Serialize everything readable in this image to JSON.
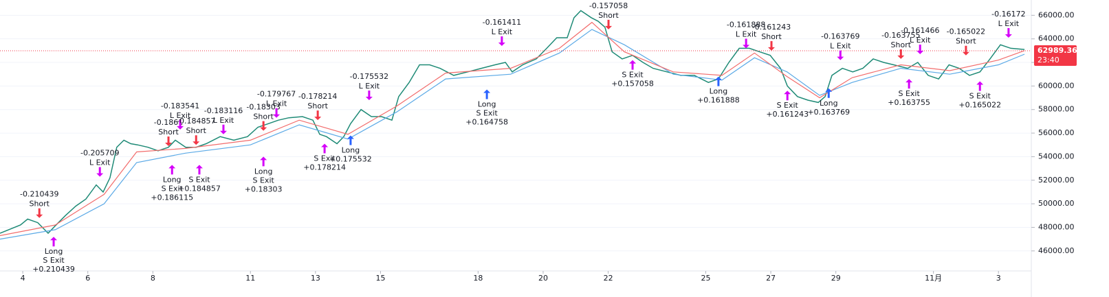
{
  "chart_data": {
    "type": "line",
    "xlim": [
      3.3,
      35.01
    ],
    "ylim": [
      44300,
      67300
    ],
    "xticks": [
      4,
      6,
      8,
      11,
      13,
      15,
      18,
      20,
      22,
      25,
      27,
      29,
      {
        "value": 32,
        "label": "11月"
      },
      {
        "value": 34,
        "label": "3"
      }
    ],
    "yticks": [
      {
        "value": 46000,
        "label": "46000.00"
      },
      {
        "value": 48000,
        "label": "48000.00"
      },
      {
        "value": 50000,
        "label": "50000.00"
      },
      {
        "value": 52000,
        "label": "52000.00"
      },
      {
        "value": 54000,
        "label": "54000.00"
      },
      {
        "value": 56000,
        "label": "56000.00"
      },
      {
        "value": 58000,
        "label": "58000.00"
      },
      {
        "value": 60000,
        "label": "60000.00"
      },
      {
        "value": 62000,
        "label": "62000.00"
      },
      {
        "value": 64000,
        "label": "64000.00"
      },
      {
        "value": 66000,
        "label": "66000.00"
      }
    ],
    "series": [
      {
        "color": "#1e8a76",
        "x": [
          3.3,
          3.93,
          4.15,
          4.46,
          4.78,
          4.99,
          5.31,
          5.63,
          5.94,
          6.26,
          6.47,
          6.68,
          6.89,
          7.11,
          7.32,
          7.53,
          7.85,
          8.16,
          8.48,
          8.69,
          9.01,
          9.33,
          9.64,
          10.07,
          10.49,
          10.91,
          11.23,
          11.55,
          11.86,
          12.18,
          12.6,
          12.92,
          13.13,
          13.34,
          13.66,
          13.87,
          14.08,
          14.4,
          14.72,
          15.03,
          15.35,
          15.56,
          15.88,
          16.2,
          16.51,
          16.83,
          17.25,
          17.68,
          18.1,
          18.52,
          18.84,
          19.05,
          19.37,
          19.79,
          20.11,
          20.42,
          20.74,
          20.95,
          21.16,
          21.48,
          21.69,
          21.9,
          22.12,
          22.43,
          22.75,
          23.07,
          23.38,
          23.81,
          24.23,
          24.65,
          25.08,
          25.39,
          25.71,
          26.03,
          26.34,
          26.66,
          26.98,
          27.3,
          27.51,
          27.82,
          28.14,
          28.46,
          28.67,
          28.88,
          29.2,
          29.52,
          29.83,
          30.15,
          30.47,
          30.78,
          31.21,
          31.52,
          31.84,
          32.16,
          32.48,
          32.79,
          33.11,
          33.43,
          33.74,
          34.06,
          34.38,
          34.8
        ],
        "values": [
          47500,
          48200,
          48700,
          48400,
          47500,
          48100,
          49000,
          49800,
          50400,
          51600,
          51000,
          52200,
          54800,
          55400,
          55100,
          55000,
          54800,
          54500,
          54800,
          55400,
          54800,
          54800,
          55100,
          55700,
          55400,
          55700,
          56500,
          56800,
          57100,
          57300,
          57400,
          57100,
          55900,
          55700,
          55100,
          55700,
          56800,
          58000,
          57400,
          57400,
          57100,
          59100,
          60300,
          61800,
          61800,
          61500,
          60900,
          61200,
          61500,
          61800,
          62000,
          61200,
          61800,
          62300,
          63200,
          64100,
          64100,
          65800,
          66400,
          65800,
          65500,
          65000,
          62900,
          62300,
          62600,
          62000,
          61500,
          61200,
          60900,
          60900,
          60300,
          60600,
          62000,
          63200,
          63200,
          62900,
          62600,
          61500,
          60000,
          59100,
          58800,
          58600,
          59100,
          60900,
          61500,
          61200,
          61500,
          62300,
          62000,
          61800,
          61500,
          62000,
          60900,
          60600,
          61800,
          61500,
          60900,
          61200,
          62300,
          63500,
          63200,
          63100
        ]
      },
      {
        "color": "#5aa9e6",
        "x": [
          3.3,
          5,
          6.5,
          7.5,
          9,
          11,
          12.5,
          14,
          15.5,
          17,
          19,
          20.5,
          21.5,
          22.5,
          24,
          25.5,
          26.5,
          27.5,
          28.5,
          29.5,
          31,
          32.5,
          34,
          34.8
        ],
        "values": [
          47000,
          47800,
          50000,
          53500,
          54300,
          55000,
          56700,
          55500,
          57800,
          60600,
          61000,
          62800,
          64800,
          63500,
          61000,
          60500,
          62400,
          61200,
          59200,
          60300,
          61500,
          61000,
          61800,
          62700
        ]
      },
      {
        "color": "#f26b6b",
        "x": [
          3.3,
          5,
          6.5,
          7.5,
          9,
          11,
          12.5,
          14,
          15.5,
          17,
          19,
          20.5,
          21.5,
          22.5,
          24,
          25.5,
          26.5,
          27.5,
          28.5,
          29.5,
          31,
          32.5,
          34,
          34.8
        ],
        "values": [
          47300,
          48200,
          50800,
          54400,
          54700,
          55400,
          57100,
          55900,
          58300,
          61100,
          61500,
          63200,
          65400,
          62900,
          61200,
          60900,
          62800,
          60800,
          59000,
          60700,
          61800,
          61300,
          62200,
          63000
        ]
      }
    ],
    "signals": [
      {
        "x": 4.51,
        "price": 48800,
        "color": "#f23645",
        "side": "above",
        "lines": [
          "-0.210439",
          "Short"
        ]
      },
      {
        "x": 4.95,
        "price": 47200,
        "color": "#d500f9",
        "side": "below",
        "lines": [
          "Long",
          "S Exit",
          "+0.210439"
        ]
      },
      {
        "x": 6.37,
        "price": 52300,
        "color": "#d500f9",
        "side": "above",
        "lines": [
          "-0.205709",
          "L Exit"
        ]
      },
      {
        "x": 8.48,
        "price": 54900,
        "color": "#f23645",
        "side": "above",
        "lines": [
          "-0.1861",
          "Short"
        ]
      },
      {
        "x": 8.59,
        "price": 53300,
        "color": "#d500f9",
        "side": "below",
        "lines": [
          "Long",
          "S Exit",
          "+0.186115"
        ]
      },
      {
        "x": 8.84,
        "price": 56300,
        "color": "#d500f9",
        "side": "above",
        "lines": [
          "-0.183541",
          "L Exit"
        ]
      },
      {
        "x": 9.33,
        "price": 55000,
        "color": "#f23645",
        "side": "above",
        "lines": [
          "-0.184857",
          "Short"
        ]
      },
      {
        "x": 9.43,
        "price": 53300,
        "color": "#d500f9",
        "side": "below",
        "lines": [
          "S Exit",
          "+0.184857"
        ]
      },
      {
        "x": 10.17,
        "price": 55900,
        "color": "#d500f9",
        "side": "above",
        "lines": [
          "-0.183116",
          "L Exit"
        ]
      },
      {
        "x": 11.4,
        "price": 56200,
        "color": "#f23645",
        "side": "above",
        "lines": [
          "-0.18303",
          "Short"
        ]
      },
      {
        "x": 11.4,
        "price": 54000,
        "color": "#d500f9",
        "side": "below",
        "lines": [
          "Long",
          "S Exit",
          "+0.18303"
        ]
      },
      {
        "x": 11.8,
        "price": 57300,
        "color": "#d500f9",
        "side": "above",
        "lines": [
          "-0.179767",
          "L Exit"
        ]
      },
      {
        "x": 13.07,
        "price": 57100,
        "color": "#f23645",
        "side": "above",
        "lines": [
          "-0.178214",
          "Short"
        ]
      },
      {
        "x": 13.28,
        "price": 55100,
        "color": "#d500f9",
        "side": "below",
        "lines": [
          "S Exit",
          "+0.178214"
        ]
      },
      {
        "x": 14.08,
        "price": 55800,
        "color": "#2962ff",
        "side": "below",
        "lines": [
          "Long",
          "+0.175532"
        ]
      },
      {
        "x": 14.65,
        "price": 58800,
        "color": "#d500f9",
        "side": "above",
        "lines": [
          "-0.175532",
          "L Exit"
        ]
      },
      {
        "x": 18.27,
        "price": 59700,
        "color": "#2962ff",
        "side": "below",
        "lines": [
          "Long",
          "S Exit",
          "+0.164758"
        ]
      },
      {
        "x": 18.73,
        "price": 63400,
        "color": "#d500f9",
        "side": "above",
        "lines": [
          "-0.161411",
          "L Exit"
        ]
      },
      {
        "x": 22.01,
        "price": 64800,
        "color": "#f23645",
        "side": "above",
        "lines": [
          "-0.157058",
          "Short"
        ]
      },
      {
        "x": 22.75,
        "price": 62200,
        "color": "#d500f9",
        "side": "below",
        "lines": [
          "S Exit",
          "+0.157058"
        ]
      },
      {
        "x": 25.39,
        "price": 60800,
        "color": "#2962ff",
        "side": "below",
        "lines": [
          "Long",
          "+0.161888"
        ]
      },
      {
        "x": 26.24,
        "price": 63200,
        "color": "#d500f9",
        "side": "above",
        "lines": [
          "-0.161888",
          "L Exit"
        ]
      },
      {
        "x": 27.02,
        "price": 63000,
        "color": "#f23645",
        "side": "above",
        "lines": [
          "-0.161243",
          "Short"
        ]
      },
      {
        "x": 27.51,
        "price": 59600,
        "color": "#d500f9",
        "side": "below",
        "lines": [
          "S Exit",
          "+0.161243"
        ]
      },
      {
        "x": 28.78,
        "price": 59800,
        "color": "#2962ff",
        "side": "below",
        "lines": [
          "Long",
          "+0.163769"
        ]
      },
      {
        "x": 29.14,
        "price": 62200,
        "color": "#d500f9",
        "side": "above",
        "lines": [
          "-0.163769",
          "L Exit"
        ]
      },
      {
        "x": 31.0,
        "price": 62300,
        "color": "#f23645",
        "side": "above",
        "lines": [
          "-0.163755",
          "Short"
        ]
      },
      {
        "x": 31.25,
        "price": 60600,
        "color": "#d500f9",
        "side": "below",
        "lines": [
          "S Exit",
          "+0.163755"
        ]
      },
      {
        "x": 31.59,
        "price": 62700,
        "color": "#d500f9",
        "side": "above",
        "lines": [
          "-0.161466",
          "L Exit"
        ]
      },
      {
        "x": 33.0,
        "price": 62600,
        "color": "#f23645",
        "side": "above",
        "lines": [
          "-0.165022",
          "Short"
        ]
      },
      {
        "x": 33.43,
        "price": 60400,
        "color": "#d500f9",
        "side": "below",
        "lines": [
          "S Exit",
          "+0.165022"
        ]
      },
      {
        "x": 34.31,
        "price": 64100,
        "color": "#d500f9",
        "side": "above",
        "lines": [
          "-0.16172",
          "L Exit"
        ]
      }
    ],
    "last_price": 62989.36,
    "last_time": "23:40",
    "last_color": "#f23645"
  }
}
